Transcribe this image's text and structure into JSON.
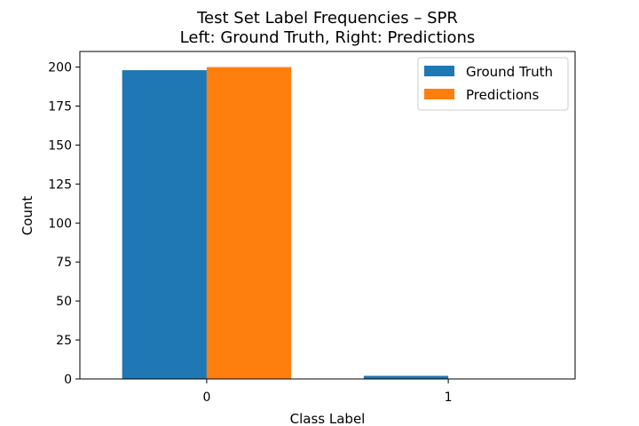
{
  "chart_data": {
    "type": "bar",
    "title": "Test Set Label Frequencies – SPR",
    "subtitle": "Left: Ground Truth, Right: Predictions",
    "xlabel": "Class Label",
    "ylabel": "Count",
    "categories": [
      "0",
      "1"
    ],
    "series": [
      {
        "name": "Ground Truth",
        "color": "#1f77b4",
        "values": [
          198,
          2
        ]
      },
      {
        "name": "Predictions",
        "color": "#ff7f0e",
        "values": [
          200,
          0
        ]
      }
    ],
    "ylim": [
      0,
      210
    ],
    "yticks": [
      0,
      25,
      50,
      75,
      100,
      125,
      150,
      175,
      200
    ],
    "grid": false,
    "legend_position": "top-right"
  }
}
